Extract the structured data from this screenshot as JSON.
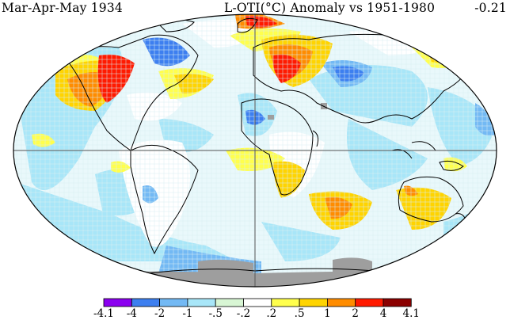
{
  "title": {
    "season": "Mar-Apr-May 1934",
    "dataset": "L-OTI(°C) Anomaly vs 1951-1980",
    "global_mean": "-0.21"
  },
  "colors": {
    "ocean_default": "#e8f7fb",
    "no_data": "#9e9e9e",
    "land_outline": "#000000",
    "grid_line": "#555555"
  },
  "legend": {
    "colors": [
      "#8b00f0",
      "#3d7ff0",
      "#73b9f4",
      "#a8e6f8",
      "#d8f6d4",
      "#ffffff",
      "#ffff4d",
      "#ffd400",
      "#ff8c00",
      "#ff1a00",
      "#8b0000"
    ],
    "labels": [
      "-4.1",
      "-4",
      "-2",
      "-1",
      "-.5",
      "-.2",
      ".2",
      ".5",
      "1",
      "2",
      "4",
      "4.1"
    ]
  }
}
